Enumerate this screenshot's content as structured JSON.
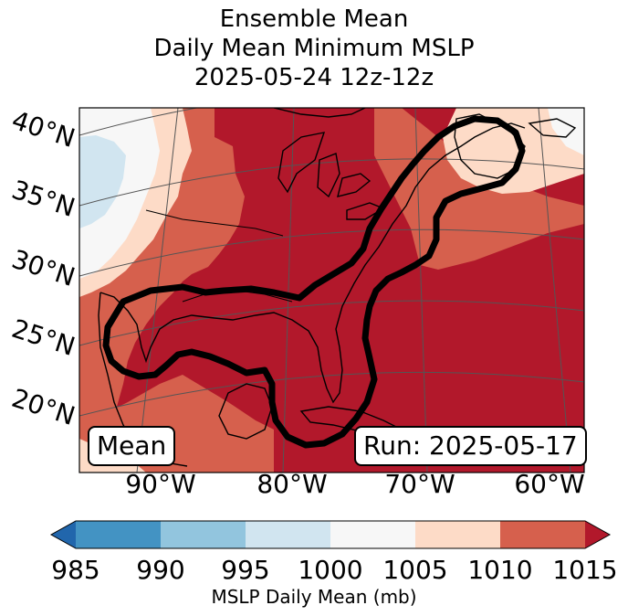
{
  "title": {
    "line1": "Ensemble Mean",
    "line2": "Daily Mean Minimum MSLP",
    "line3": "2025-05-24 12z-12z"
  },
  "map": {
    "lat_labels": [
      "40°N",
      "35°N",
      "30°N",
      "25°N",
      "20°N"
    ],
    "lon_labels": [
      "90°W",
      "80°W",
      "70°W",
      "60°W"
    ],
    "mean_label": "Mean",
    "run_label": "Run: 2025-05-17"
  },
  "colorbar": {
    "ticks": [
      "985",
      "990",
      "995",
      "1000",
      "1005",
      "1010",
      "1015"
    ],
    "label": "MSLP Daily Mean (mb)",
    "colors": [
      "#2166ac",
      "#4393c3",
      "#92c5de",
      "#d1e5f0",
      "#f7f7f7",
      "#fddbc7",
      "#d6604d",
      "#b2182b"
    ]
  }
}
